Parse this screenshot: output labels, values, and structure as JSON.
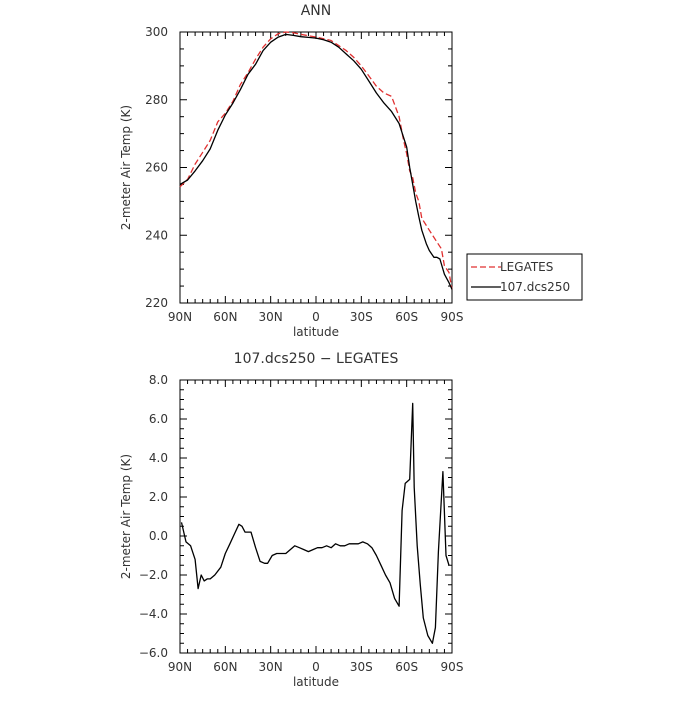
{
  "chart_data": [
    {
      "type": "line",
      "title": "ANN",
      "xlabel": "latitude",
      "ylabel": "2-meter Air Temp (K)",
      "x_tick_labels": [
        "90N",
        "60N",
        "30N",
        "0",
        "30S",
        "60S",
        "90S"
      ],
      "x_tick_values": [
        90,
        60,
        30,
        0,
        -30,
        -60,
        -90
      ],
      "ylim": [
        220,
        300
      ],
      "y_tick_labels": [
        "220",
        "240",
        "260",
        "280",
        "300"
      ],
      "y_tick_values": [
        220,
        240,
        260,
        280,
        300
      ],
      "legend_position": "outside-right",
      "series": [
        {
          "name": "LEGATES",
          "color": "#e03030",
          "dash": "dashed",
          "x": [
            90,
            85,
            80,
            75,
            70,
            65,
            60,
            55,
            50,
            45,
            40,
            35,
            30,
            25,
            20,
            15,
            10,
            5,
            0,
            -5,
            -10,
            -15,
            -20,
            -25,
            -30,
            -35,
            -40,
            -45,
            -50,
            -55,
            -58,
            -60,
            -62,
            -64,
            -66,
            -68,
            -70,
            -75,
            -80,
            -83,
            -85,
            -88,
            -90
          ],
          "y": [
            254.3,
            256.5,
            261.0,
            264.5,
            268.0,
            273.5,
            276.0,
            279.5,
            284.5,
            288.0,
            292.0,
            295.5,
            298.0,
            299.5,
            300.0,
            299.8,
            299.3,
            298.9,
            298.5,
            298.0,
            297.5,
            296.0,
            294.5,
            292.5,
            290.0,
            287.0,
            284.0,
            282.0,
            281.0,
            275.0,
            268.0,
            264.0,
            259.0,
            257.0,
            252.5,
            250.0,
            245.0,
            241.5,
            238.0,
            236.0,
            231.0,
            229.0,
            224.0
          ]
        },
        {
          "name": "107.dcs250",
          "color": "#000000",
          "dash": "solid",
          "x": [
            90,
            85,
            80,
            75,
            70,
            65,
            60,
            55,
            50,
            45,
            40,
            35,
            30,
            25,
            20,
            15,
            10,
            5,
            0,
            -5,
            -10,
            -15,
            -20,
            -25,
            -30,
            -35,
            -40,
            -45,
            -50,
            -55,
            -60,
            -62,
            -64,
            -66,
            -68,
            -70,
            -73,
            -75,
            -78,
            -80,
            -82,
            -85,
            -88,
            -90
          ],
          "y": [
            255.0,
            256.3,
            259.0,
            262.0,
            265.5,
            271.0,
            275.5,
            279.0,
            283.0,
            287.5,
            290.5,
            294.5,
            297.0,
            298.5,
            299.3,
            299.0,
            298.6,
            298.4,
            298.2,
            297.7,
            297.0,
            295.5,
            293.5,
            291.5,
            289.0,
            285.5,
            282.0,
            279.0,
            276.5,
            273.0,
            266.0,
            260.0,
            255.0,
            250.0,
            245.5,
            241.5,
            237.5,
            235.5,
            233.5,
            233.5,
            233.0,
            228.5,
            226.0,
            224.0
          ]
        }
      ]
    },
    {
      "type": "line",
      "title": "107.dcs250 − LEGATES",
      "xlabel": "latitude",
      "ylabel": "2-meter Air Temp (K)",
      "x_tick_labels": [
        "90N",
        "60N",
        "30N",
        "0",
        "30S",
        "60S",
        "90S"
      ],
      "x_tick_values": [
        90,
        60,
        30,
        0,
        -30,
        -60,
        -90
      ],
      "ylim": [
        -6,
        8
      ],
      "y_tick_labels": [
        "−6.0",
        "−4.0",
        "−2.0",
        "0.0",
        "2.0",
        "4.0",
        "6.0",
        "8.0"
      ],
      "y_tick_values": [
        -6,
        -4,
        -2,
        0,
        2,
        4,
        6,
        8
      ],
      "series": [
        {
          "color": "#000000",
          "dash": "solid",
          "x": [
            89,
            86,
            83,
            80,
            78,
            76,
            74,
            72,
            70,
            67,
            63,
            60,
            57,
            54,
            51,
            49,
            47,
            45,
            43,
            40,
            37,
            34,
            32,
            29,
            26,
            23,
            20,
            17,
            14,
            11,
            8,
            5,
            2,
            -1,
            -4,
            -7,
            -10,
            -13,
            -16,
            -19,
            -22,
            -25,
            -28,
            -31,
            -34,
            -37,
            -40,
            -43,
            -46,
            -49,
            -52,
            -55,
            -57,
            -59,
            -62,
            -64,
            -65,
            -67,
            -69,
            -71,
            -74,
            -77,
            -79,
            -81,
            -84,
            -86,
            -88
          ],
          "y": [
            0.7,
            -0.3,
            -0.5,
            -1.2,
            -2.7,
            -2.0,
            -2.3,
            -2.2,
            -2.2,
            -2.0,
            -1.6,
            -0.9,
            -0.4,
            0.1,
            0.6,
            0.5,
            0.2,
            0.2,
            0.2,
            -0.6,
            -1.3,
            -1.4,
            -1.4,
            -1.0,
            -0.9,
            -0.9,
            -0.9,
            -0.7,
            -0.5,
            -0.6,
            -0.7,
            -0.8,
            -0.7,
            -0.6,
            -0.6,
            -0.5,
            -0.6,
            -0.4,
            -0.5,
            -0.5,
            -0.4,
            -0.4,
            -0.4,
            -0.3,
            -0.4,
            -0.6,
            -1.0,
            -1.5,
            -2.0,
            -2.4,
            -3.2,
            -3.6,
            1.3,
            2.7,
            2.9,
            6.8,
            2.5,
            -0.5,
            -2.5,
            -4.2,
            -5.1,
            -5.5,
            -4.7,
            -0.8,
            3.3,
            -1.0,
            -1.5
          ]
        }
      ]
    }
  ]
}
